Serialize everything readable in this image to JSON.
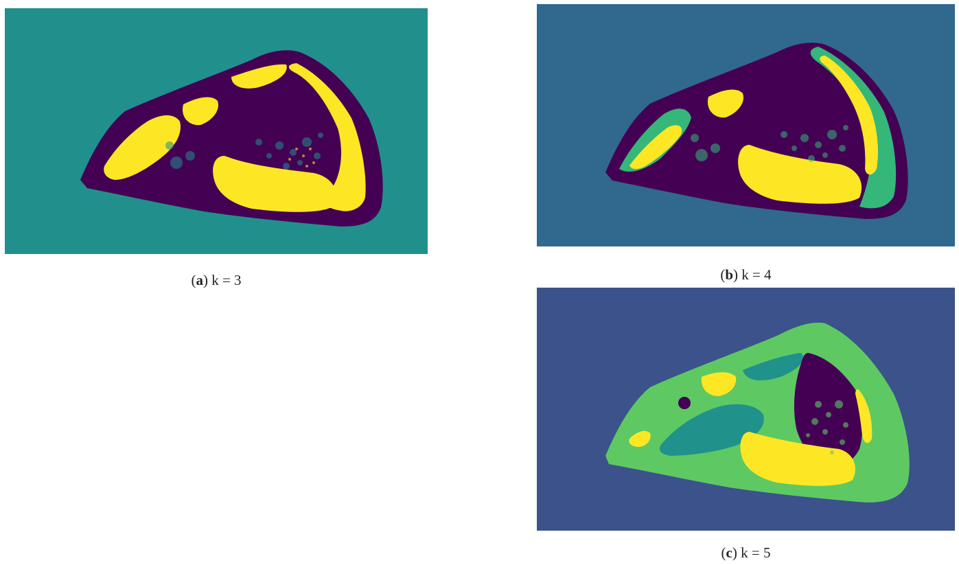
{
  "figure": {
    "panels": [
      {
        "id": "a",
        "label": "a",
        "caption_text": "k = 3",
        "clusters": 3,
        "colors": {
          "background": "#21908c",
          "dark": "#440154",
          "bright": "#fde725"
        }
      },
      {
        "id": "b",
        "label": "b",
        "caption_text": "k = 4",
        "clusters": 4,
        "colors": {
          "background": "#31688e",
          "dark": "#440154",
          "mid": "#35b779",
          "bright": "#fde725"
        }
      },
      {
        "id": "c",
        "label": "c",
        "caption_text": "k = 5",
        "clusters": 5,
        "colors": {
          "background": "#3b528b",
          "dark": "#440154",
          "mid": "#21918c",
          "light": "#5ec962",
          "bright": "#fde725"
        }
      }
    ]
  }
}
